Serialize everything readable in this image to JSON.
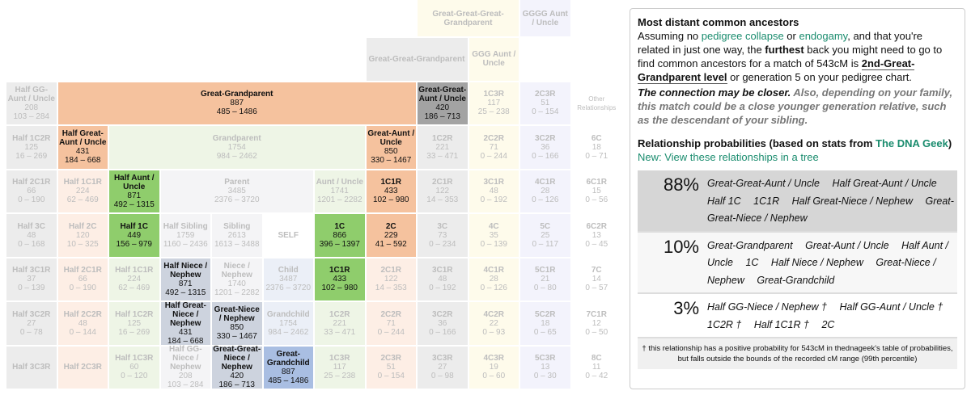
{
  "cells": [
    {
      "name": "Great-Great-Great-Grandparent",
      "avg": "",
      "range": ""
    },
    {
      "name": "GGGG Aunt / Uncle",
      "avg": "",
      "range": ""
    },
    {
      "name": "Great-Great-Grandparent",
      "avg": "",
      "range": ""
    },
    {
      "name": "GGG Aunt / Uncle",
      "avg": "",
      "range": ""
    },
    {
      "name": "Half GG-Aunt / Uncle",
      "avg": "208",
      "range": "103 – 284"
    },
    {
      "name": "Great-Grandparent",
      "avg": "887",
      "range": "485 – 1486",
      "hl": "#f5c29e"
    },
    {
      "name": "Great-Great-Aunt / Uncle",
      "avg": "420",
      "range": "186 – 713",
      "hl": "#a3a3a3"
    },
    {
      "name": "1C3R",
      "avg": "117",
      "range": "25 – 238"
    },
    {
      "name": "2C3R",
      "avg": "51",
      "range": "0 – 154"
    },
    {
      "name": "Other Relationships",
      "avg": "",
      "range": ""
    },
    {
      "name": "Half 1C2R",
      "avg": "125",
      "range": "16 – 269"
    },
    {
      "name": "Half Great-Aunt / Uncle",
      "avg": "431",
      "range": "184 – 668",
      "hl": "#f5c29e"
    },
    {
      "name": "Grandparent",
      "avg": "1754",
      "range": "984 – 2462"
    },
    {
      "name": "Great-Aunt / Uncle",
      "avg": "850",
      "range": "330 – 1467",
      "hl": "#f5c29e"
    },
    {
      "name": "1C2R",
      "avg": "221",
      "range": "33 – 471"
    },
    {
      "name": "2C2R",
      "avg": "71",
      "range": "0 – 244"
    },
    {
      "name": "3C2R",
      "avg": "36",
      "range": "0 – 166"
    },
    {
      "name": "6C",
      "avg": "18",
      "range": "0 – 71"
    },
    {
      "name": "Half 2C1R",
      "avg": "66",
      "range": "0 – 190"
    },
    {
      "name": "Half 1C1R",
      "avg": "224",
      "range": "62 – 469"
    },
    {
      "name": "Half Aunt / Uncle",
      "avg": "871",
      "range": "492 – 1315",
      "hl": "#8fcd6c"
    },
    {
      "name": "Parent",
      "avg": "3485",
      "range": "2376 – 3720"
    },
    {
      "name": "Aunt / Uncle",
      "avg": "1741",
      "range": "1201 – 2282"
    },
    {
      "name": "1C1R",
      "avg": "433",
      "range": "102 – 980",
      "hl": "#f5c29e"
    },
    {
      "name": "2C1R",
      "avg": "122",
      "range": "14 – 353"
    },
    {
      "name": "3C1R",
      "avg": "48",
      "range": "0 – 192"
    },
    {
      "name": "4C1R",
      "avg": "28",
      "range": "0 – 126"
    },
    {
      "name": "6C1R",
      "avg": "15",
      "range": "0 – 56"
    },
    {
      "name": "Half 3C",
      "avg": "48",
      "range": "0 – 168"
    },
    {
      "name": "Half 2C",
      "avg": "120",
      "range": "10 – 325"
    },
    {
      "name": "Half 1C",
      "avg": "449",
      "range": "156 – 979",
      "hl": "#8fcd6c"
    },
    {
      "name": "Half Sibling",
      "avg": "1759",
      "range": "1160 – 2436"
    },
    {
      "name": "Sibling",
      "avg": "2613",
      "range": "1613 – 3488"
    },
    {
      "name": "SELF",
      "avg": "",
      "range": ""
    },
    {
      "name": "1C",
      "avg": "866",
      "range": "396 – 1397",
      "hl": "#8fcd6c"
    },
    {
      "name": "2C",
      "avg": "229",
      "range": "41 – 592",
      "hl": "#f5c29e"
    },
    {
      "name": "3C",
      "avg": "73",
      "range": "0 – 234"
    },
    {
      "name": "4C",
      "avg": "35",
      "range": "0 – 139"
    },
    {
      "name": "5C",
      "avg": "25",
      "range": "0 – 117"
    },
    {
      "name": "6C2R",
      "avg": "13",
      "range": "0 – 45"
    },
    {
      "name": "Half 3C1R",
      "avg": "37",
      "range": "0 – 139"
    },
    {
      "name": "Half 2C1R",
      "avg": "66",
      "range": "0 – 190"
    },
    {
      "name": "Half 1C1R",
      "avg": "224",
      "range": "62 – 469"
    },
    {
      "name": "Half Niece / Nephew",
      "avg": "871",
      "range": "492 – 1315",
      "hl": "#cdd3de"
    },
    {
      "name": "Niece / Nephew",
      "avg": "1740",
      "range": "1201 – 2282"
    },
    {
      "name": "Child",
      "avg": "3487",
      "range": "2376 – 3720"
    },
    {
      "name": "1C1R",
      "avg": "433",
      "range": "102 – 980",
      "hl": "#8fcd6c"
    },
    {
      "name": "2C1R",
      "avg": "122",
      "range": "14 – 353"
    },
    {
      "name": "3C1R",
      "avg": "48",
      "range": "0 – 192"
    },
    {
      "name": "4C1R",
      "avg": "28",
      "range": "0 – 126"
    },
    {
      "name": "5C1R",
      "avg": "21",
      "range": "0 – 80"
    },
    {
      "name": "7C",
      "avg": "14",
      "range": "0 – 57"
    },
    {
      "name": "Half 3C2R",
      "avg": "27",
      "range": "0 – 78"
    },
    {
      "name": "Half 2C2R",
      "avg": "48",
      "range": "0 – 144"
    },
    {
      "name": "Half 1C2R",
      "avg": "125",
      "range": "16 – 269"
    },
    {
      "name": "Half Great-Niece / Nephew",
      "avg": "431",
      "range": "184 – 668",
      "hl": "#cdd3de"
    },
    {
      "name": "Great-Niece / Nephew",
      "avg": "850",
      "range": "330 – 1467",
      "hl": "#cdd3de"
    },
    {
      "name": "Grandchild",
      "avg": "1754",
      "range": "984 – 2462"
    },
    {
      "name": "1C2R",
      "avg": "221",
      "range": "33 – 471"
    },
    {
      "name": "2C2R",
      "avg": "71",
      "range": "0 – 244"
    },
    {
      "name": "3C2R",
      "avg": "36",
      "range": "0 – 166"
    },
    {
      "name": "4C2R",
      "avg": "22",
      "range": "0 – 93"
    },
    {
      "name": "5C2R",
      "avg": "18",
      "range": "0 – 65"
    },
    {
      "name": "7C1R",
      "avg": "12",
      "range": "0 – 50"
    },
    {
      "name": "Half 3C3R",
      "avg": "",
      "range": ""
    },
    {
      "name": "Half 2C3R",
      "avg": "",
      "range": ""
    },
    {
      "name": "Half 1C3R",
      "avg": "60",
      "range": "0 – 120"
    },
    {
      "name": "Half GG-Niece / Nephew",
      "avg": "208",
      "range": "103 – 284"
    },
    {
      "name": "Great-Great-Niece / Nephew",
      "avg": "420",
      "range": "186 – 713",
      "hl": "#cdd3de"
    },
    {
      "name": "Great-Grandchild",
      "avg": "887",
      "range": "485 – 1486",
      "hl": "#a9bee2"
    },
    {
      "name": "1C3R",
      "avg": "117",
      "range": "25 – 238"
    },
    {
      "name": "2C3R",
      "avg": "51",
      "range": "0 – 154"
    },
    {
      "name": "3C3R",
      "avg": "27",
      "range": "0 – 98"
    },
    {
      "name": "4C3R",
      "avg": "19",
      "range": "0 – 60"
    },
    {
      "name": "5C3R",
      "avg": "13",
      "range": "0 – 30"
    },
    {
      "name": "8C",
      "avg": "11",
      "range": "0 – 42"
    }
  ],
  "panel": {
    "title": "Most distant common ancestors",
    "p1": "Assuming no ",
    "link1": "pedigree collapse",
    "p2": " or ",
    "link2": "endogamy",
    "p3": ", and that you're related in just one way, the ",
    "bold1": "furthest",
    "p4": " back you might need to go to find common ancestors for a match of 543cM is ",
    "level": "2nd-Great-Grandparent level",
    "p5": " or generation 5 on your pedigree chart.",
    "closer_bold": "The connection may be closer.",
    "closer_rest": " Also, depending on your family, this match could be a close younger generation relative, such as the descendant of your sibling.",
    "prob_title": "Relationship probabilities (based on stats from ",
    "prob_link": "The DNA Geek",
    "prob_close": ")",
    "tree_link": "New: View these relationships in a tree",
    "probabilities": [
      {
        "pct": "88%",
        "rels": [
          "Great-Great-Aunt / Uncle",
          "Half Great-Aunt / Uncle",
          "Half 1C",
          "1C1R",
          "Half Great-Niece / Nephew",
          "Great-Great-Niece / Nephew"
        ],
        "bg": "#d6d6d6"
      },
      {
        "pct": "10%",
        "rels": [
          "Great-Grandparent",
          "Great-Aunt / Uncle",
          "Half Aunt / Uncle",
          "1C",
          "Half Niece / Nephew",
          "Great-Niece / Nephew",
          "Great-Grandchild"
        ],
        "bg": "#f7f7f7"
      },
      {
        "pct": "3%",
        "rels": [
          "Half GG-Niece / Nephew †",
          "Half GG-Aunt / Uncle †",
          "1C2R †",
          "Half 1C1R †",
          "2C"
        ],
        "bg": "#ffffff"
      }
    ],
    "footnote": "† this relationship has a positive probability for 543cM in thednageek's table of probabilities, but falls outside the bounds of the recorded cM range (99th percentile)"
  }
}
